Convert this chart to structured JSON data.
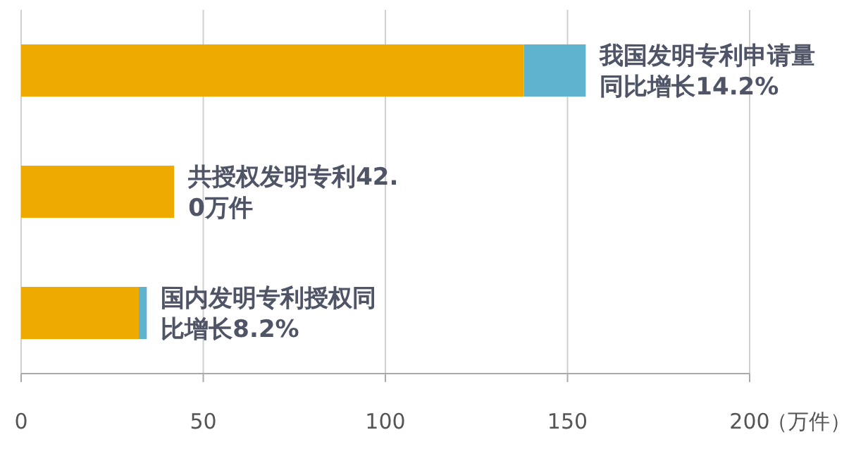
{
  "chart_data": {
    "type": "bar",
    "orientation": "horizontal",
    "stacked": true,
    "categories": [
      null,
      null,
      null
    ],
    "series": [
      {
        "color": "#efaa00",
        "values": [
          138,
          42,
          32.3
        ]
      },
      {
        "color": "#5fb3cf",
        "values": [
          17,
          0,
          2.2
        ]
      }
    ],
    "xlim": [
      0,
      200
    ],
    "xticks": [
      0,
      50,
      100,
      150,
      200
    ],
    "xlabel": "（万件）",
    "grid": "x",
    "annotations": [
      "我国发明专利申请量同比增长14.2%",
      "共授权发明专利42.0万件",
      "国内发明专利授权同比增长8.2%"
    ]
  }
}
